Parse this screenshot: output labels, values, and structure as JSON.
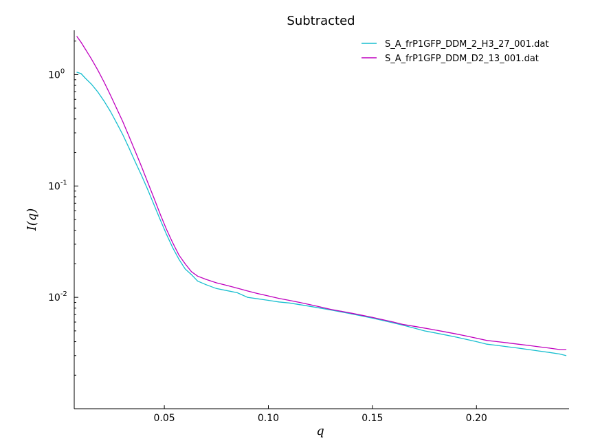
{
  "chart_data": {
    "type": "line",
    "title": "Subtracted",
    "xlabel": "q",
    "ylabel": "I(q)",
    "xscale": "linear",
    "yscale": "log",
    "xlim": [
      0.0067,
      0.2445
    ],
    "ylim": [
      0.001,
      2.5
    ],
    "grid": false,
    "legend_position": "top-right",
    "x_ticks": [
      {
        "value": 0.05,
        "label": "0.05"
      },
      {
        "value": 0.1,
        "label": "0.10"
      },
      {
        "value": 0.15,
        "label": "0.15"
      },
      {
        "value": 0.2,
        "label": "0.20"
      }
    ],
    "y_ticks": [
      {
        "value": 1,
        "base": "10",
        "exp": "0"
      },
      {
        "value": 0.1,
        "base": "10",
        "exp": "-1"
      },
      {
        "value": 0.01,
        "base": "10",
        "exp": "-2"
      }
    ],
    "series": [
      {
        "name": "S_A_frP1GFP_DDM_2_H3_27_001.dat",
        "color": "#17becf",
        "x": [
          0.008,
          0.01,
          0.012,
          0.015,
          0.018,
          0.021,
          0.024,
          0.027,
          0.03,
          0.033,
          0.036,
          0.039,
          0.042,
          0.045,
          0.048,
          0.051,
          0.054,
          0.057,
          0.06,
          0.063,
          0.066,
          0.07,
          0.075,
          0.08,
          0.085,
          0.09,
          0.095,
          0.1,
          0.105,
          0.11,
          0.115,
          0.12,
          0.125,
          0.13,
          0.135,
          0.14,
          0.145,
          0.15,
          0.155,
          0.16,
          0.165,
          0.17,
          0.175,
          0.18,
          0.185,
          0.19,
          0.195,
          0.2,
          0.205,
          0.21,
          0.215,
          0.22,
          0.225,
          0.23,
          0.235,
          0.24,
          0.243
        ],
        "y": [
          1.05,
          1.02,
          0.93,
          0.82,
          0.7,
          0.58,
          0.47,
          0.37,
          0.29,
          0.22,
          0.165,
          0.125,
          0.093,
          0.068,
          0.05,
          0.037,
          0.028,
          0.022,
          0.018,
          0.016,
          0.014,
          0.013,
          0.012,
          0.0115,
          0.011,
          0.01,
          0.0097,
          0.0094,
          0.0091,
          0.0089,
          0.0086,
          0.0083,
          0.008,
          0.0077,
          0.0074,
          0.0071,
          0.0068,
          0.0065,
          0.0062,
          0.0059,
          0.0056,
          0.0053,
          0.005,
          0.0048,
          0.0046,
          0.0044,
          0.0042,
          0.004,
          0.0038,
          0.0037,
          0.0036,
          0.0035,
          0.0034,
          0.0033,
          0.0032,
          0.0031,
          0.003
        ]
      },
      {
        "name": "S_A_frP1GFP_DDM_D2_13_001.dat",
        "color": "#bf00bf",
        "x": [
          0.008,
          0.01,
          0.012,
          0.015,
          0.018,
          0.021,
          0.024,
          0.027,
          0.03,
          0.033,
          0.036,
          0.039,
          0.042,
          0.045,
          0.048,
          0.051,
          0.054,
          0.057,
          0.06,
          0.063,
          0.066,
          0.07,
          0.075,
          0.08,
          0.085,
          0.09,
          0.095,
          0.1,
          0.105,
          0.11,
          0.115,
          0.12,
          0.125,
          0.13,
          0.135,
          0.14,
          0.145,
          0.15,
          0.155,
          0.16,
          0.165,
          0.17,
          0.175,
          0.18,
          0.185,
          0.19,
          0.195,
          0.2,
          0.205,
          0.21,
          0.215,
          0.22,
          0.225,
          0.23,
          0.235,
          0.24,
          0.243
        ],
        "y": [
          2.2,
          1.95,
          1.7,
          1.38,
          1.1,
          0.86,
          0.66,
          0.5,
          0.38,
          0.28,
          0.205,
          0.15,
          0.108,
          0.078,
          0.056,
          0.041,
          0.031,
          0.024,
          0.02,
          0.017,
          0.0155,
          0.0145,
          0.0135,
          0.0128,
          0.0121,
          0.0114,
          0.0108,
          0.0103,
          0.0098,
          0.0094,
          0.009,
          0.0086,
          0.0082,
          0.0078,
          0.0075,
          0.0072,
          0.0069,
          0.0066,
          0.0063,
          0.006,
          0.0057,
          0.0055,
          0.0053,
          0.0051,
          0.0049,
          0.0047,
          0.0045,
          0.0043,
          0.0041,
          0.004,
          0.0039,
          0.0038,
          0.0037,
          0.0036,
          0.0035,
          0.0034,
          0.0034
        ]
      }
    ]
  }
}
